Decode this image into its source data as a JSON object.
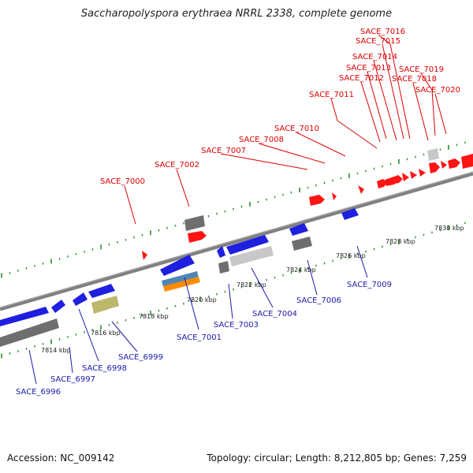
{
  "title": "Saccharopolyspora erythraea NRRL 2338, complete genome",
  "footer": {
    "accession": "Accession: NC_009142",
    "summary": "Topology: circular; Length: 8,212,805 bp; Genes: 7,259"
  },
  "colors": {
    "upper_label": "#dd0000",
    "lower_label": "#1a1aaa",
    "tick": "#2e8b2e",
    "forward_gene": "#ff1414",
    "reverse_gene": "#1f1fe0",
    "gray_block": "#6e6e6e",
    "light_block": "#c8c8c8",
    "khaki_block": "#bdb76b",
    "steel_block": "#4f86b4",
    "orange_block": "#ff8c00"
  },
  "axis": {
    "tick_labels": [
      "7814 kbp",
      "7816 kbp",
      "7818 kbp",
      "7820 kbp",
      "7822 kbp",
      "7824 kbp",
      "7826 kbp",
      "7828 kbp",
      "7830 kbp"
    ]
  },
  "genes_forward": [
    "SACE_7000",
    "SACE_7002",
    "SACE_7007",
    "SACE_7008",
    "SACE_7010",
    "SACE_7011",
    "SACE_7012",
    "SACE_7013",
    "SACE_7014",
    "SACE_7015",
    "SACE_7016",
    "SACE_7018",
    "SACE_7019",
    "SACE_7020"
  ],
  "genes_reverse": [
    "SACE_6996",
    "SACE_6997",
    "SACE_6998",
    "SACE_6999",
    "SACE_7001",
    "SACE_7003",
    "SACE_7004",
    "SACE_7006",
    "SACE_7009"
  ]
}
